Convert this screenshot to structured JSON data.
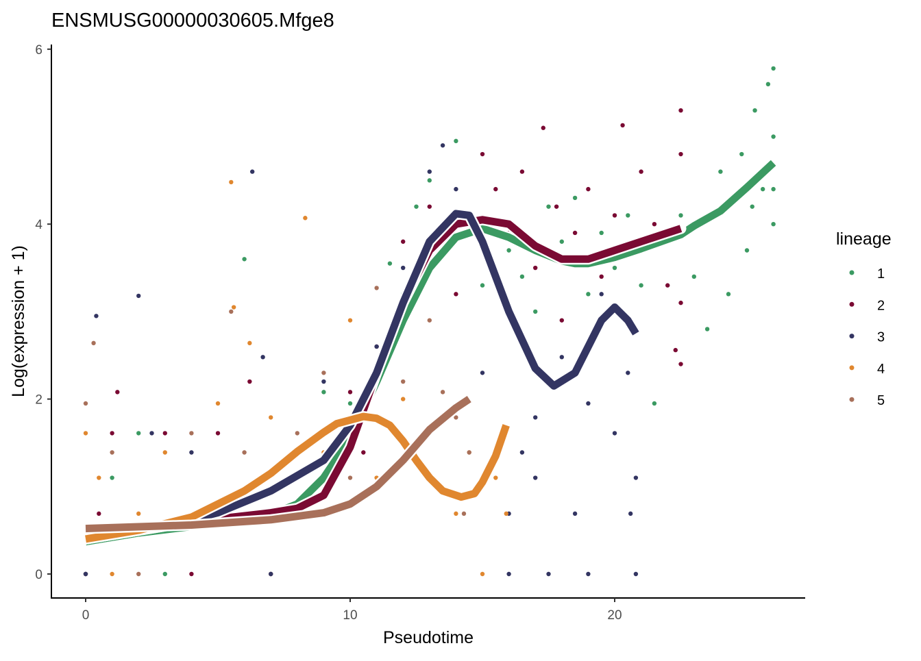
{
  "chart_data": {
    "type": "scatter",
    "title": "ENSMUSG00000030605.Mfge8",
    "xlabel": "Pseudotime",
    "ylabel": "Log(expression + 1)",
    "xlim": [
      -1.3,
      27.2
    ],
    "ylim": [
      -0.27,
      6.05
    ],
    "xticks": [
      0,
      10,
      20
    ],
    "yticks": [
      0,
      2,
      4,
      6
    ],
    "grid": false,
    "legend": {
      "title": "lineage",
      "placement": "right"
    },
    "series": [
      {
        "name": "1",
        "color": "#3B9A62",
        "points": [
          [
            0,
            0
          ],
          [
            1,
            1.1
          ],
          [
            2,
            1.61
          ],
          [
            3,
            0
          ],
          [
            5,
            0.69
          ],
          [
            6,
            3.6
          ],
          [
            7,
            0
          ],
          [
            9,
            2.08
          ],
          [
            10,
            1.95
          ],
          [
            11,
            2.2
          ],
          [
            11.5,
            3.55
          ],
          [
            12,
            3.2
          ],
          [
            12.5,
            4.2
          ],
          [
            13,
            4.5
          ],
          [
            13.5,
            3.9
          ],
          [
            14,
            4.95
          ],
          [
            15,
            3.3
          ],
          [
            16,
            3.7
          ],
          [
            16.5,
            3.4
          ],
          [
            17,
            3.0
          ],
          [
            17.5,
            4.2
          ],
          [
            18,
            3.8
          ],
          [
            18.5,
            4.3
          ],
          [
            19,
            3.2
          ],
          [
            19.5,
            3.9
          ],
          [
            20,
            3.5
          ],
          [
            20.5,
            4.1
          ],
          [
            21,
            3.3
          ],
          [
            21.5,
            1.95
          ],
          [
            22,
            3.9
          ],
          [
            22.5,
            4.1
          ],
          [
            23,
            3.4
          ],
          [
            23.5,
            2.8
          ],
          [
            24,
            4.6
          ],
          [
            24.3,
            3.2
          ],
          [
            24.8,
            4.8
          ],
          [
            25,
            3.7
          ],
          [
            25.3,
            5.3
          ],
          [
            25.6,
            4.4
          ],
          [
            25.8,
            5.6
          ],
          [
            26,
            5.0
          ],
          [
            26,
            4.0
          ],
          [
            26,
            5.78
          ],
          [
            26,
            4.4
          ],
          [
            25.2,
            4.2
          ]
        ],
        "curve": [
          [
            0,
            0.37
          ],
          [
            2,
            0.47
          ],
          [
            5,
            0.58
          ],
          [
            7,
            0.68
          ],
          [
            8,
            0.8
          ],
          [
            9,
            1.1
          ],
          [
            10,
            1.55
          ],
          [
            11,
            2.2
          ],
          [
            12,
            2.9
          ],
          [
            13,
            3.5
          ],
          [
            14,
            3.85
          ],
          [
            15,
            3.95
          ],
          [
            16,
            3.85
          ],
          [
            17,
            3.7
          ],
          [
            18,
            3.58
          ],
          [
            18.5,
            3.55
          ],
          [
            19,
            3.55
          ],
          [
            20,
            3.62
          ],
          [
            21,
            3.72
          ],
          [
            22.5,
            3.88
          ],
          [
            23,
            3.98
          ],
          [
            24,
            4.15
          ],
          [
            25,
            4.42
          ],
          [
            26,
            4.7
          ]
        ]
      },
      {
        "name": "2",
        "color": "#7A0A33",
        "points": [
          [
            0,
            0
          ],
          [
            0.5,
            0.69
          ],
          [
            1.2,
            2.08
          ],
          [
            1,
            1.61
          ],
          [
            3,
            1.61
          ],
          [
            4,
            0
          ],
          [
            5,
            1.61
          ],
          [
            6.2,
            2.2
          ],
          [
            5,
            0.69
          ],
          [
            7,
            0
          ],
          [
            8,
            1.1
          ],
          [
            9,
            0.69
          ],
          [
            10,
            2.08
          ],
          [
            10.5,
            1.39
          ],
          [
            11,
            2.6
          ],
          [
            12,
            3.8
          ],
          [
            13,
            4.2
          ],
          [
            14,
            3.2
          ],
          [
            15,
            4.8
          ],
          [
            15.5,
            4.4
          ],
          [
            16,
            3.9
          ],
          [
            16.5,
            4.6
          ],
          [
            17,
            3.5
          ],
          [
            17.3,
            5.1
          ],
          [
            17.8,
            4.2
          ],
          [
            18,
            2.9
          ],
          [
            18.5,
            3.9
          ],
          [
            19,
            4.4
          ],
          [
            19.5,
            3.4
          ],
          [
            20,
            4.1
          ],
          [
            20.3,
            5.13
          ],
          [
            20.8,
            3.7
          ],
          [
            21,
            4.6
          ],
          [
            21.5,
            4.0
          ],
          [
            22,
            3.3
          ],
          [
            22.5,
            5.3
          ],
          [
            22.5,
            2.4
          ],
          [
            22.5,
            4.8
          ],
          [
            22.5,
            3.1
          ],
          [
            22.3,
            2.56
          ]
        ],
        "curve": [
          [
            0,
            0.4
          ],
          [
            3,
            0.55
          ],
          [
            5,
            0.63
          ],
          [
            7,
            0.7
          ],
          [
            8,
            0.75
          ],
          [
            9,
            0.9
          ],
          [
            10,
            1.45
          ],
          [
            11,
            2.3
          ],
          [
            12,
            3.1
          ],
          [
            13,
            3.7
          ],
          [
            14,
            4.0
          ],
          [
            15,
            4.05
          ],
          [
            16,
            4.0
          ],
          [
            17,
            3.75
          ],
          [
            18,
            3.6
          ],
          [
            19,
            3.6
          ],
          [
            20,
            3.7
          ],
          [
            21,
            3.8
          ],
          [
            22.5,
            3.95
          ]
        ]
      },
      {
        "name": "3",
        "color": "#333562",
        "points": [
          [
            0,
            0
          ],
          [
            0.4,
            2.95
          ],
          [
            2,
            3.18
          ],
          [
            2.5,
            1.61
          ],
          [
            4,
            1.39
          ],
          [
            6.3,
            4.6
          ],
          [
            6.7,
            2.48
          ],
          [
            7,
            0
          ],
          [
            8,
            1.1
          ],
          [
            9,
            2.2
          ],
          [
            10,
            1.79
          ],
          [
            11,
            2.6
          ],
          [
            12,
            3.5
          ],
          [
            13,
            4.6
          ],
          [
            13.5,
            4.9
          ],
          [
            14,
            4.4
          ],
          [
            15,
            2.3
          ],
          [
            16,
            0.69
          ],
          [
            16.5,
            1.39
          ],
          [
            17,
            1.79
          ],
          [
            17.5,
            0
          ],
          [
            18,
            2.48
          ],
          [
            18.5,
            0.69
          ],
          [
            19,
            1.95
          ],
          [
            19.5,
            3.2
          ],
          [
            20,
            1.61
          ],
          [
            20.5,
            2.3
          ],
          [
            20.8,
            0
          ],
          [
            20.8,
            1.1
          ],
          [
            20.6,
            0.69
          ],
          [
            19,
            0
          ],
          [
            17,
            1.1
          ],
          [
            16,
            0
          ]
        ],
        "curve": [
          [
            0,
            0.4
          ],
          [
            3,
            0.55
          ],
          [
            5,
            0.7
          ],
          [
            7,
            0.95
          ],
          [
            9,
            1.3
          ],
          [
            10,
            1.7
          ],
          [
            11,
            2.3
          ],
          [
            12,
            3.1
          ],
          [
            13,
            3.8
          ],
          [
            14,
            4.12
          ],
          [
            14.5,
            4.1
          ],
          [
            15,
            3.8
          ],
          [
            16,
            3.0
          ],
          [
            17,
            2.35
          ],
          [
            17.7,
            2.15
          ],
          [
            18.5,
            2.3
          ],
          [
            19.5,
            2.9
          ],
          [
            20,
            3.05
          ],
          [
            20.5,
            2.9
          ],
          [
            20.8,
            2.75
          ]
        ]
      },
      {
        "name": "4",
        "color": "#E0872F",
        "points": [
          [
            0,
            1.61
          ],
          [
            0.5,
            1.1
          ],
          [
            1,
            0
          ],
          [
            2,
            0.69
          ],
          [
            3,
            1.39
          ],
          [
            5,
            1.95
          ],
          [
            5.5,
            4.48
          ],
          [
            5.6,
            3.05
          ],
          [
            6.2,
            2.64
          ],
          [
            7,
            1.79
          ],
          [
            8.3,
            4.07
          ],
          [
            9,
            1.39
          ],
          [
            10,
            2.9
          ],
          [
            11,
            1.1
          ],
          [
            12,
            2.0
          ],
          [
            13,
            1.61
          ],
          [
            14,
            0.69
          ],
          [
            14.5,
            1.39
          ],
          [
            15,
            0
          ],
          [
            15.5,
            1.1
          ],
          [
            15.9,
            0.69
          ]
        ],
        "curve": [
          [
            0,
            0.4
          ],
          [
            2,
            0.5
          ],
          [
            4,
            0.65
          ],
          [
            6,
            0.95
          ],
          [
            7,
            1.15
          ],
          [
            8,
            1.4
          ],
          [
            9,
            1.62
          ],
          [
            9.5,
            1.72
          ],
          [
            10.5,
            1.8
          ],
          [
            11,
            1.78
          ],
          [
            11.5,
            1.7
          ],
          [
            12,
            1.52
          ],
          [
            12.5,
            1.3
          ],
          [
            13,
            1.1
          ],
          [
            13.5,
            0.95
          ],
          [
            14.2,
            0.88
          ],
          [
            14.7,
            0.92
          ],
          [
            15,
            1.05
          ],
          [
            15.5,
            1.35
          ],
          [
            15.9,
            1.7
          ]
        ]
      },
      {
        "name": "5",
        "color": "#A8705A",
        "points": [
          [
            0,
            1.95
          ],
          [
            0.3,
            2.64
          ],
          [
            1,
            1.39
          ],
          [
            2,
            0
          ],
          [
            4,
            1.61
          ],
          [
            5.5,
            3.0
          ],
          [
            6,
            1.39
          ],
          [
            7,
            0.69
          ],
          [
            8,
            1.61
          ],
          [
            9,
            2.3
          ],
          [
            10,
            1.1
          ],
          [
            11,
            3.27
          ],
          [
            12,
            2.2
          ],
          [
            13,
            2.9
          ],
          [
            13.5,
            2.08
          ],
          [
            14,
            1.79
          ],
          [
            14.3,
            0.69
          ],
          [
            14.5,
            1.39
          ]
        ],
        "curve": [
          [
            0,
            0.52
          ],
          [
            2,
            0.54
          ],
          [
            4,
            0.56
          ],
          [
            6,
            0.6
          ],
          [
            7,
            0.62
          ],
          [
            8,
            0.66
          ],
          [
            9,
            0.7
          ],
          [
            10,
            0.8
          ],
          [
            11,
            1.0
          ],
          [
            12,
            1.3
          ],
          [
            13,
            1.65
          ],
          [
            14,
            1.9
          ],
          [
            14.5,
            2.0
          ]
        ]
      }
    ]
  }
}
